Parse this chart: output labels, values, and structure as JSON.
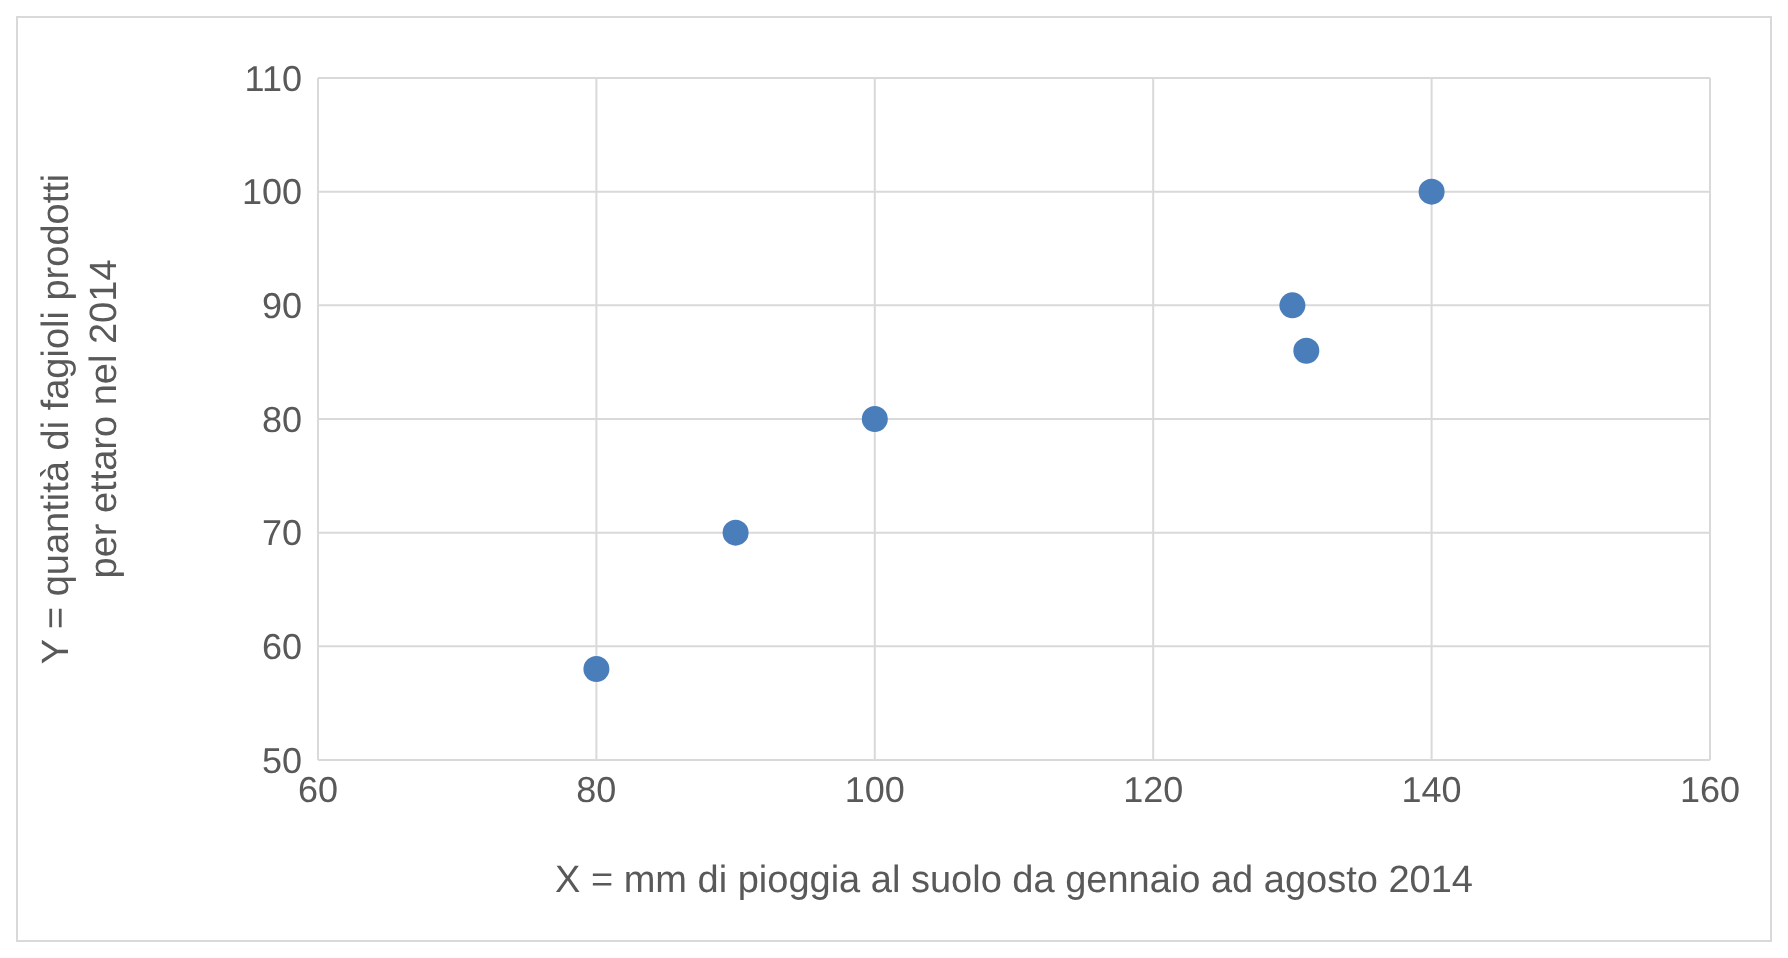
{
  "chart_data": {
    "type": "scatter",
    "xlabel": "X = mm di pioggia al suolo da gennaio ad agosto 2014",
    "ylabel": "Y = quantità di fagioli prodotti\nper ettaro nel 2014",
    "x": [
      80,
      90,
      100,
      130,
      131,
      140
    ],
    "series": [
      {
        "color": "#4a7ebb",
        "values": [
          58,
          70,
          80,
          90,
          86,
          100
        ]
      }
    ],
    "xlim": [
      60,
      160
    ],
    "xticks": [
      60,
      80,
      100,
      120,
      140,
      160
    ],
    "ylim": [
      50,
      110
    ],
    "yticks": [
      50,
      60,
      70,
      80,
      90,
      100,
      110
    ],
    "grid": true,
    "legend": false,
    "marker": "circle"
  }
}
